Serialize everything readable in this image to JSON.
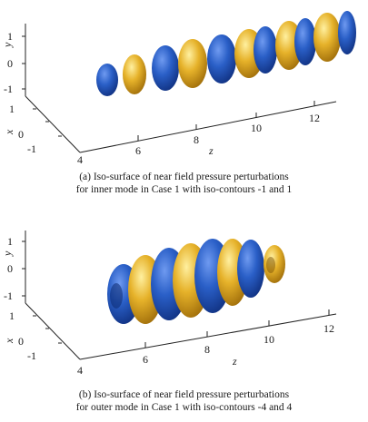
{
  "panels": [
    {
      "caption_line1": "(a) Iso-surface of near field pressure perturbations",
      "caption_line2": "for inner mode in Case 1 with iso-contours -1 and 1",
      "y_axis_label": "y",
      "x_axis_label": "x",
      "z_axis_label": "z",
      "y_ticks": [
        "1",
        "0",
        "-1"
      ],
      "x_ticks": [
        "1",
        "0",
        "-1"
      ],
      "z_ticks": [
        "4",
        "6",
        "8",
        "10",
        "12"
      ]
    },
    {
      "caption_line1": "(b) Iso-surface of near field pressure perturbations",
      "caption_line2": "for outer mode in Case 1 with iso-contours -4 and 4",
      "y_axis_label": "y",
      "x_axis_label": "x",
      "z_axis_label": "z",
      "y_ticks": [
        "1",
        "0",
        "-1"
      ],
      "x_ticks": [
        "1",
        "0",
        "-1"
      ],
      "z_ticks": [
        "4",
        "6",
        "8",
        "10",
        "12"
      ]
    }
  ],
  "colors": {
    "negative_isosurface": "#2255b8",
    "positive_isosurface": "#e0a81e"
  }
}
